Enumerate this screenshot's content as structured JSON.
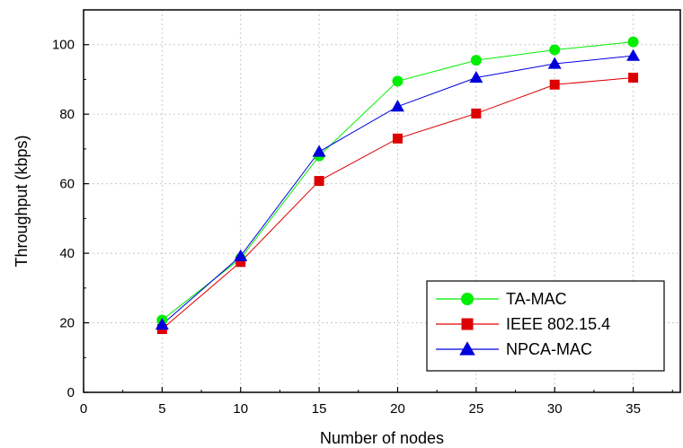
{
  "chart_data": {
    "type": "line",
    "xlabel": "Number of nodes",
    "ylabel": "Throughput (kbps)",
    "xlim": [
      0,
      38
    ],
    "ylim": [
      0,
      110
    ],
    "xticks": [
      0,
      5,
      10,
      15,
      20,
      25,
      30,
      35
    ],
    "yticks": [
      0,
      20,
      40,
      60,
      80,
      100
    ],
    "x": [
      5,
      10,
      15,
      20,
      25,
      30,
      35
    ],
    "grid": true,
    "legend_position": "bottom-right",
    "series": [
      {
        "name": "TA-MAC",
        "color": "#00ee00",
        "marker": "circle",
        "values": [
          20.8,
          38.5,
          68.0,
          89.5,
          95.5,
          98.5,
          100.8
        ]
      },
      {
        "name": "IEEE 802.15.4",
        "color": "#dd0000",
        "marker": "square",
        "values": [
          18.2,
          37.5,
          60.8,
          73.0,
          80.2,
          88.5,
          90.5
        ]
      },
      {
        "name": "NPCA-MAC",
        "color": "#0000dd",
        "marker": "triangle",
        "values": [
          19.5,
          39.2,
          69.2,
          82.2,
          90.5,
          94.5,
          96.8
        ]
      }
    ]
  }
}
